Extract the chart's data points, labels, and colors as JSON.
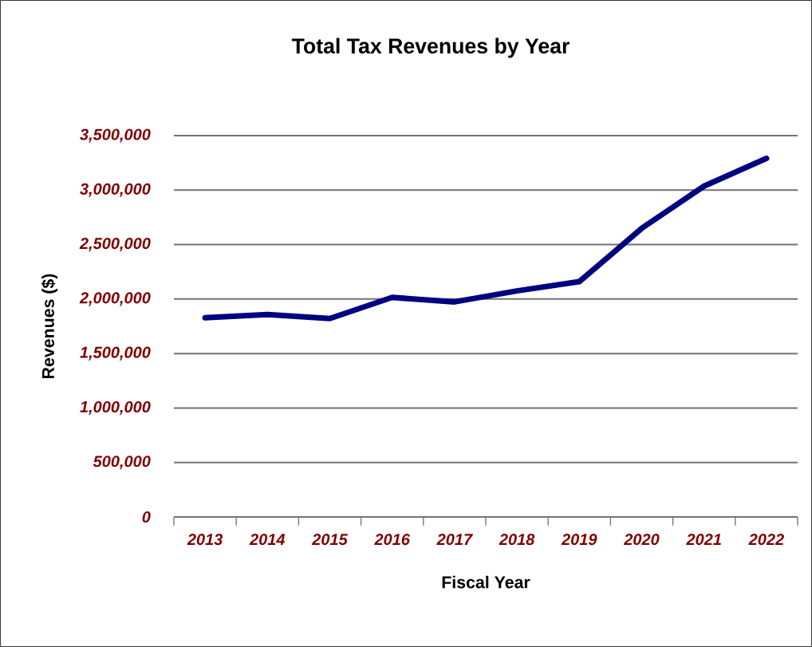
{
  "chart_data": {
    "type": "line",
    "title": "Total Tax Revenues by Year",
    "xlabel": "Fiscal Year",
    "ylabel": "Revenues ($)",
    "categories": [
      "2013",
      "2014",
      "2015",
      "2016",
      "2017",
      "2018",
      "2019",
      "2020",
      "2021",
      "2022"
    ],
    "series": [
      {
        "color": "#000080",
        "values": [
          1828000,
          1858000,
          1821000,
          2015000,
          1974000,
          2075000,
          2160000,
          2649000,
          3037000,
          3291000
        ]
      }
    ],
    "ylim": [
      0,
      3500000
    ],
    "yticks": [
      0,
      {
        "value": 500000,
        "label": "500,000"
      },
      {
        "value": 1000000,
        "label": "1,000,000"
      },
      {
        "value": 1500000,
        "label": "1,500,000"
      },
      {
        "value": 2000000,
        "label": "2,000,000"
      },
      {
        "value": 2500000,
        "label": "2,500,000"
      },
      {
        "value": 3000000,
        "label": "3,000,000"
      },
      {
        "value": 3500000,
        "label": "3,500,000"
      }
    ],
    "grid": "y",
    "line_style": "solid",
    "marker": "none"
  }
}
